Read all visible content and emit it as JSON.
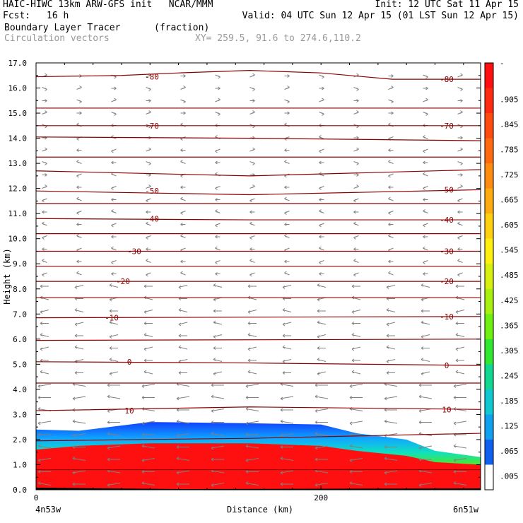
{
  "header": {
    "line1_left": "HAIC-HIWC 13km ARW-GFS init   NCAR/MMM",
    "line1_right": "Init: 12 UTC Sat 11 Apr 15",
    "fcst_label": "Fcst:",
    "fcst_value": "16 h",
    "valid": "Valid: 04 UTC Sun 12 Apr 15 (01 LST Sun 12 Apr 15)",
    "field": "Boundary Layer Tracer",
    "field_units": "(fraction)",
    "vectors": "Circulation vectors",
    "xy": "XY= 259.5, 91.6 to 274.6,110.2"
  },
  "chart_data": {
    "type": "heatmap",
    "title": "Boundary Layer Tracer (fraction)",
    "xlabel": "Distance (km)",
    "ylabel": "Height (km)",
    "xlim": [
      0,
      312
    ],
    "ylim": [
      0.0,
      17.0
    ],
    "x_ticks": [
      "0",
      "200"
    ],
    "x_end_labels": [
      "4n53w",
      "6n51w"
    ],
    "y_ticks": [
      "0.0",
      "1.0",
      "2.0",
      "3.0",
      "4.0",
      "5.0",
      "6.0",
      "7.0",
      "8.0",
      "9.0",
      "10.0",
      "11.0",
      "12.0",
      "13.0",
      "14.0",
      "15.0",
      "16.0",
      "17.0"
    ],
    "colorbar": {
      "labels": [
        "-",
        ".905",
        ".845",
        ".785",
        ".725",
        ".665",
        ".605",
        ".545",
        ".485",
        ".425",
        ".365",
        ".305",
        ".245",
        ".185",
        ".125",
        ".065",
        ".005"
      ],
      "colors": [
        "#ff1010",
        "#ff2b10",
        "#ff4a10",
        "#ff6a10",
        "#ff8c10",
        "#ffac10",
        "#ffd010",
        "#fff010",
        "#d8f010",
        "#a8f010",
        "#70f010",
        "#30e830",
        "#10d890",
        "#10c8d0",
        "#10a0f0",
        "#1060f0",
        "#ffffff"
      ]
    },
    "tracer_layer": {
      "x_km": [
        0,
        30,
        80,
        150,
        200,
        225,
        260,
        280,
        312
      ],
      "top_km": [
        2.4,
        2.35,
        2.7,
        2.65,
        2.6,
        2.25,
        2.0,
        1.55,
        1.3
      ],
      "red_top_km": [
        1.6,
        1.75,
        1.85,
        1.85,
        1.75,
        1.55,
        1.35,
        1.1,
        1.0
      ]
    },
    "temperature_contours": [
      {
        "label": "-80",
        "x_km": [
          0,
          60,
          100,
          150,
          200,
          250,
          312
        ],
        "y_km": [
          16.45,
          16.5,
          16.6,
          16.7,
          16.6,
          16.35,
          16.35
        ]
      },
      {
        "label": "",
        "x_km": [
          0,
          312
        ],
        "y_km": [
          15.2,
          15.2
        ]
      },
      {
        "label": "-70",
        "x_km": [
          0,
          150,
          312
        ],
        "y_km": [
          14.5,
          14.5,
          14.5
        ]
      },
      {
        "label": "",
        "x_km": [
          0,
          150,
          312
        ],
        "y_km": [
          14.05,
          14.0,
          13.9
        ]
      },
      {
        "label": "",
        "x_km": [
          0,
          312
        ],
        "y_km": [
          13.25,
          13.25
        ]
      },
      {
        "label": "",
        "x_km": [
          0,
          150,
          312
        ],
        "y_km": [
          12.7,
          12.5,
          12.75
        ]
      },
      {
        "label": "-50",
        "x_km": [
          0,
          150,
          312
        ],
        "y_km": [
          11.9,
          11.75,
          11.95
        ]
      },
      {
        "label": "",
        "x_km": [
          0,
          312
        ],
        "y_km": [
          11.4,
          11.4
        ]
      },
      {
        "label": "-40",
        "x_km": [
          0,
          150,
          312
        ],
        "y_km": [
          10.8,
          10.75,
          10.75
        ]
      },
      {
        "label": "",
        "x_km": [
          0,
          312
        ],
        "y_km": [
          10.2,
          10.2
        ]
      },
      {
        "label": "-30",
        "x_km": [
          0,
          312
        ],
        "y_km": [
          9.5,
          9.5
        ]
      },
      {
        "label": "",
        "x_km": [
          0,
          312
        ],
        "y_km": [
          8.9,
          8.9
        ]
      },
      {
        "label": "-20",
        "x_km": [
          0,
          312
        ],
        "y_km": [
          8.3,
          8.3
        ]
      },
      {
        "label": "",
        "x_km": [
          0,
          312
        ],
        "y_km": [
          7.65,
          7.65
        ]
      },
      {
        "label": "-10",
        "x_km": [
          0,
          312
        ],
        "y_km": [
          6.85,
          6.9
        ]
      },
      {
        "label": "",
        "x_km": [
          0,
          312
        ],
        "y_km": [
          5.95,
          6.0
        ]
      },
      {
        "label": "0",
        "x_km": [
          0,
          150,
          312
        ],
        "y_km": [
          5.1,
          5.05,
          4.95
        ]
      },
      {
        "label": "",
        "x_km": [
          0,
          312
        ],
        "y_km": [
          4.25,
          4.25
        ]
      },
      {
        "label": "10",
        "x_km": [
          0,
          150,
          312
        ],
        "y_km": [
          3.15,
          3.3,
          3.2
        ]
      },
      {
        "label": "",
        "x_km": [
          0,
          150,
          312
        ],
        "y_km": [
          1.95,
          2.05,
          2.25
        ]
      },
      {
        "label": "",
        "x_km": [
          0,
          312
        ],
        "y_km": [
          0.8,
          0.8
        ]
      }
    ]
  }
}
